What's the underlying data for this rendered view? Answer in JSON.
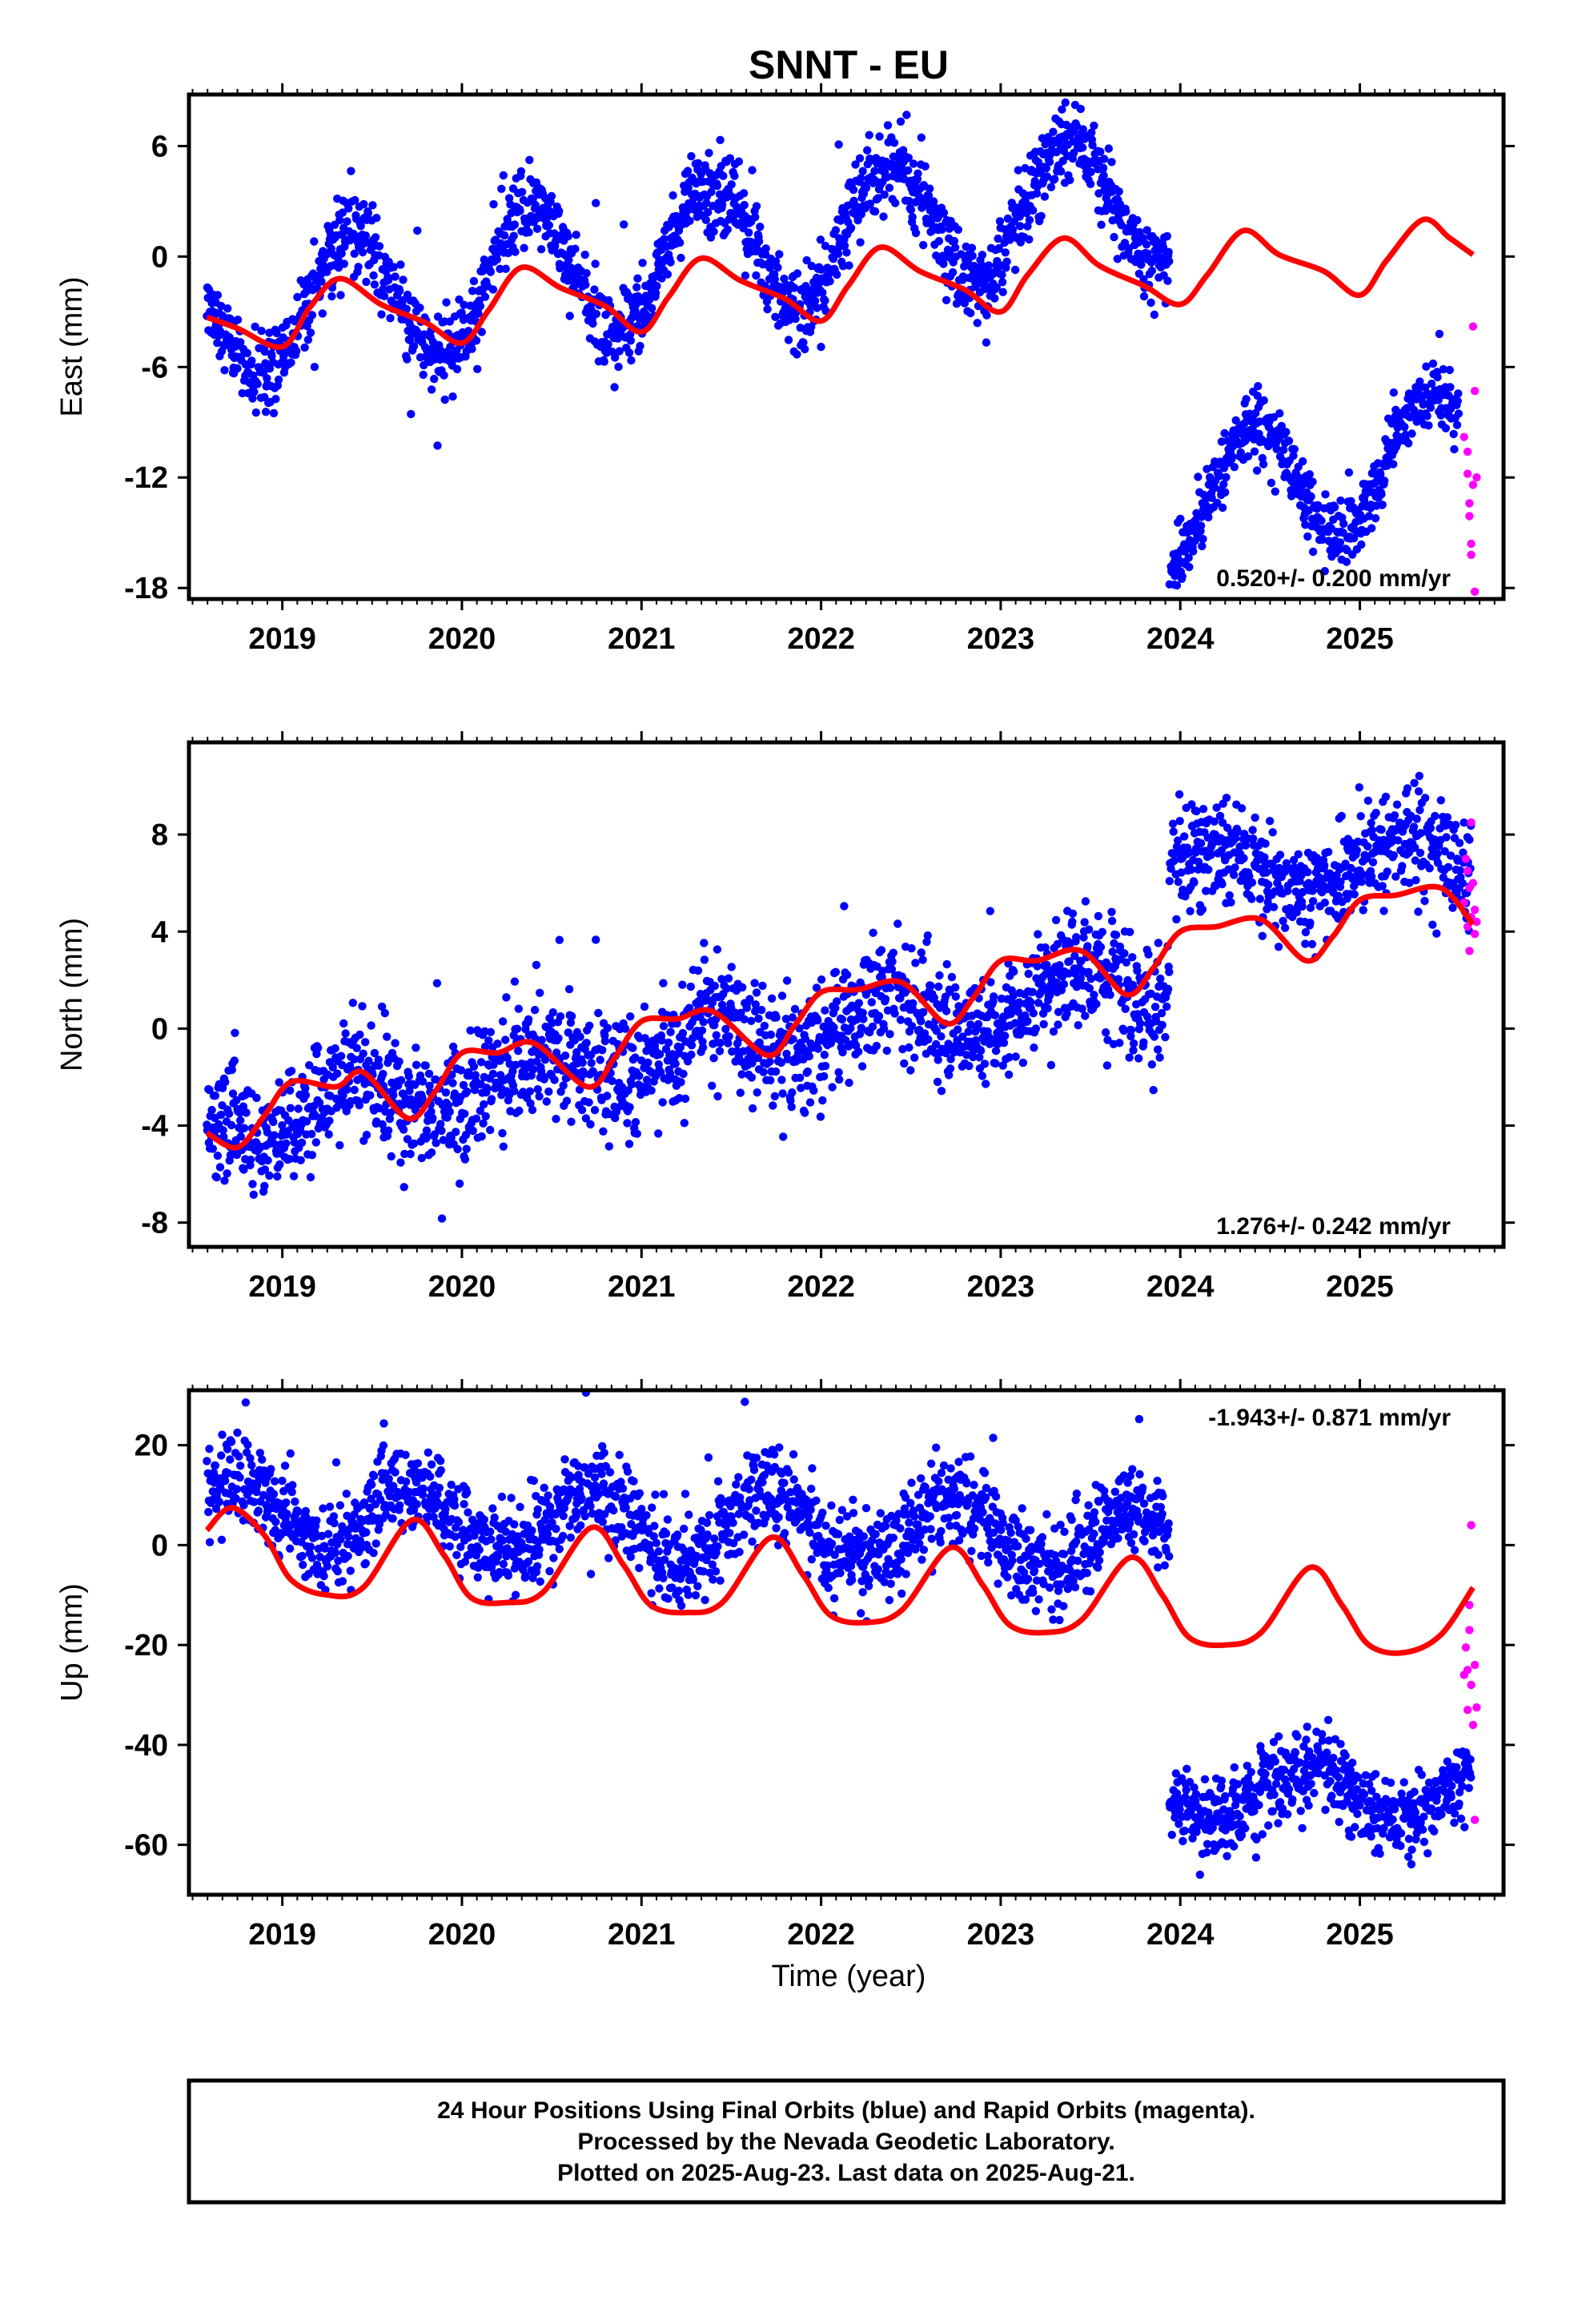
{
  "title": "SNNT - EU",
  "xlabel": "Time (year)",
  "x_tick_labels": [
    "2019",
    "2020",
    "2021",
    "2022",
    "2023",
    "2024",
    "2025"
  ],
  "footer": {
    "line1": "24 Hour Positions Using Final Orbits (blue) and Rapid Orbits (magenta).",
    "line2": "Processed by the Nevada Geodetic Laboratory.",
    "line3": "Plotted on 2025-Aug-23. Last data on 2025-Aug-21."
  },
  "colors": {
    "final_orbits": "#0000ff",
    "rapid_orbits": "#ff00ff",
    "model_fit": "#ff0000",
    "frame": "#000000"
  },
  "chart_data": [
    {
      "type": "scatter",
      "name": "east",
      "ylabel": "East (mm)",
      "xlim": [
        2018.48,
        2025.8
      ],
      "ylim": [
        -18.6,
        8.8
      ],
      "y_ticks": [
        6,
        0,
        -6,
        -12,
        -18
      ],
      "y_tick_labels": [
        "6",
        "0",
        "-6",
        "-12",
        "-18"
      ],
      "rate_label": "0.520+/- 0.200 mm/yr",
      "series": [
        {
          "role": "final",
          "segments": [
            {
              "t0": 2018.58,
              "t1": 2023.94,
              "trend_start": -3.2,
              "trend_end": 3.3,
              "ann_amp": 3.6,
              "ann_phase_peak": 0.38,
              "scatter": 1.1,
              "offset": 0
            },
            {
              "t0": 2023.94,
              "t1": 2025.55,
              "trend_start": -13.5,
              "trend_end": -10.5,
              "ann_amp": 3.4,
              "ann_phase_peak": 0.4,
              "scatter": 0.9,
              "offset": 0
            }
          ]
        },
        {
          "role": "rapid",
          "points": [
            [
              2025.58,
              -9.8
            ],
            [
              2025.6,
              -10.6
            ],
            [
              2025.6,
              -11.8
            ],
            [
              2025.61,
              -13.4
            ],
            [
              2025.61,
              -14.1
            ],
            [
              2025.62,
              -15.6
            ],
            [
              2025.62,
              -16.2
            ],
            [
              2025.63,
              -12.4
            ],
            [
              2025.63,
              -3.8
            ],
            [
              2025.64,
              -7.3
            ],
            [
              2025.64,
              -18.2
            ],
            [
              2025.65,
              -12.0
            ]
          ]
        }
      ],
      "model": [
        [
          2018.58,
          -3.3
        ],
        [
          2018.75,
          -3.9
        ],
        [
          2019.0,
          -4.9
        ],
        [
          2019.15,
          -2.8
        ],
        [
          2019.32,
          -1.2
        ],
        [
          2019.55,
          -2.6
        ],
        [
          2019.8,
          -3.6
        ],
        [
          2020.0,
          -4.7
        ],
        [
          2020.15,
          -2.9
        ],
        [
          2020.33,
          -0.6
        ],
        [
          2020.55,
          -1.7
        ],
        [
          2020.8,
          -2.7
        ],
        [
          2021.0,
          -4.1
        ],
        [
          2021.15,
          -2.2
        ],
        [
          2021.33,
          -0.1
        ],
        [
          2021.55,
          -1.3
        ],
        [
          2021.8,
          -2.3
        ],
        [
          2022.0,
          -3.5
        ],
        [
          2022.15,
          -1.6
        ],
        [
          2022.33,
          0.5
        ],
        [
          2022.55,
          -0.8
        ],
        [
          2022.8,
          -1.8
        ],
        [
          2023.0,
          -3.0
        ],
        [
          2023.15,
          -1.0
        ],
        [
          2023.35,
          1.0
        ],
        [
          2023.55,
          -0.5
        ],
        [
          2023.8,
          -1.6
        ],
        [
          2024.0,
          -2.6
        ],
        [
          2024.15,
          -1.0
        ],
        [
          2024.35,
          1.4
        ],
        [
          2024.55,
          0.1
        ],
        [
          2024.8,
          -0.8
        ],
        [
          2025.0,
          -2.1
        ],
        [
          2025.15,
          -0.2
        ],
        [
          2025.35,
          2.0
        ],
        [
          2025.5,
          1.0
        ],
        [
          2025.63,
          0.1
        ]
      ]
    },
    {
      "type": "scatter",
      "name": "north",
      "ylabel": "North (mm)",
      "xlim": [
        2018.48,
        2025.8
      ],
      "ylim": [
        -9.0,
        11.8
      ],
      "y_ticks": [
        8,
        4,
        0,
        -4,
        -8
      ],
      "y_tick_labels": [
        "8",
        "4",
        "0",
        "-4",
        "-8"
      ],
      "rate_label": "1.276+/- 0.242 mm/yr",
      "series": [
        {
          "role": "final",
          "segments": [
            {
              "t0": 2018.58,
              "t1": 2023.94,
              "trend_start": -3.8,
              "trend_end": 2.0,
              "ann_amp": 1.0,
              "ann_phase_peak": 0.4,
              "scatter": 1.2,
              "offset": 0
            },
            {
              "t0": 2023.94,
              "t1": 2025.62,
              "trend_start": 6.2,
              "trend_end": 7.2,
              "ann_amp": 1.0,
              "ann_phase_peak": 0.2,
              "scatter": 1.1,
              "offset": 0
            }
          ]
        },
        {
          "role": "rapid",
          "points": [
            [
              2025.58,
              5.2
            ],
            [
              2025.59,
              7.0
            ],
            [
              2025.6,
              6.5
            ],
            [
              2025.6,
              4.2
            ],
            [
              2025.61,
              3.2
            ],
            [
              2025.61,
              5.8
            ],
            [
              2025.62,
              4.6
            ],
            [
              2025.62,
              8.5
            ],
            [
              2025.63,
              6.0
            ],
            [
              2025.64,
              4.9
            ],
            [
              2025.64,
              3.9
            ],
            [
              2025.65,
              4.4
            ]
          ]
        }
      ],
      "model": [
        [
          2018.58,
          -4.3
        ],
        [
          2018.75,
          -4.9
        ],
        [
          2018.9,
          -3.6
        ],
        [
          2019.05,
          -2.2
        ],
        [
          2019.3,
          -2.4
        ],
        [
          2019.45,
          -1.8
        ],
        [
          2019.7,
          -3.7
        ],
        [
          2019.85,
          -2.6
        ],
        [
          2020.0,
          -1.0
        ],
        [
          2020.2,
          -1.0
        ],
        [
          2020.4,
          -0.6
        ],
        [
          2020.7,
          -2.4
        ],
        [
          2020.85,
          -1.2
        ],
        [
          2021.0,
          0.3
        ],
        [
          2021.2,
          0.4
        ],
        [
          2021.4,
          0.7
        ],
        [
          2021.7,
          -1.1
        ],
        [
          2021.85,
          0.1
        ],
        [
          2022.0,
          1.5
        ],
        [
          2022.2,
          1.6
        ],
        [
          2022.45,
          1.9
        ],
        [
          2022.7,
          0.2
        ],
        [
          2022.85,
          1.3
        ],
        [
          2023.0,
          2.8
        ],
        [
          2023.2,
          2.8
        ],
        [
          2023.45,
          3.2
        ],
        [
          2023.7,
          1.4
        ],
        [
          2023.85,
          2.5
        ],
        [
          2024.0,
          4.0
        ],
        [
          2024.2,
          4.2
        ],
        [
          2024.45,
          4.5
        ],
        [
          2024.7,
          2.8
        ],
        [
          2024.85,
          3.8
        ],
        [
          2025.0,
          5.3
        ],
        [
          2025.2,
          5.5
        ],
        [
          2025.45,
          5.8
        ],
        [
          2025.63,
          4.3
        ]
      ]
    },
    {
      "type": "scatter",
      "name": "up",
      "ylabel": "Up (mm)",
      "xlim": [
        2018.48,
        2025.8
      ],
      "ylim": [
        -70.0,
        31.0
      ],
      "y_ticks": [
        20,
        0,
        -20,
        -40,
        -60
      ],
      "y_tick_labels": [
        "20",
        "0",
        "-20",
        "-40",
        "-60"
      ],
      "rate_label": "-1.943+/- 0.871 mm/yr",
      "series": [
        {
          "role": "final",
          "segments": [
            {
              "t0": 2018.58,
              "t1": 2023.94,
              "trend_start": 7.0,
              "trend_end": 0.5,
              "ann_amp": 6.5,
              "ann_phase_peak": 0.72,
              "scatter": 4.5,
              "offset": 0
            },
            {
              "t0": 2023.94,
              "t1": 2025.62,
              "trend_start": -50.0,
              "trend_end": -50.0,
              "ann_amp": 5.0,
              "ann_phase_peak": 0.7,
              "scatter": 4.0,
              "offset": 0
            }
          ]
        },
        {
          "role": "rapid",
          "points": [
            [
              2025.58,
              -26.0
            ],
            [
              2025.59,
              -20.5
            ],
            [
              2025.6,
              -25.0
            ],
            [
              2025.6,
              -33.0
            ],
            [
              2025.61,
              -12.0
            ],
            [
              2025.61,
              -17.0
            ],
            [
              2025.62,
              -28.0
            ],
            [
              2025.62,
              4.0
            ],
            [
              2025.63,
              -36.0
            ],
            [
              2025.64,
              -55.0
            ],
            [
              2025.64,
              -24.0
            ],
            [
              2025.65,
              -32.5
            ]
          ]
        }
      ],
      "model": [
        [
          2018.58,
          3.0
        ],
        [
          2018.72,
          7.5
        ],
        [
          2018.9,
          2.0
        ],
        [
          2019.05,
          -7.0
        ],
        [
          2019.25,
          -10.0
        ],
        [
          2019.45,
          -8.5
        ],
        [
          2019.72,
          5.0
        ],
        [
          2019.9,
          -2.0
        ],
        [
          2020.05,
          -10.5
        ],
        [
          2020.25,
          -11.5
        ],
        [
          2020.45,
          -9.5
        ],
        [
          2020.72,
          3.5
        ],
        [
          2020.9,
          -4.0
        ],
        [
          2021.05,
          -12.0
        ],
        [
          2021.25,
          -13.5
        ],
        [
          2021.45,
          -11.5
        ],
        [
          2021.72,
          1.5
        ],
        [
          2021.9,
          -6.0
        ],
        [
          2022.05,
          -14.0
        ],
        [
          2022.25,
          -15.5
        ],
        [
          2022.45,
          -13.0
        ],
        [
          2022.72,
          -0.5
        ],
        [
          2022.9,
          -8.0
        ],
        [
          2023.05,
          -16.0
        ],
        [
          2023.25,
          -17.5
        ],
        [
          2023.45,
          -15.0
        ],
        [
          2023.72,
          -2.5
        ],
        [
          2023.9,
          -10.0
        ],
        [
          2024.05,
          -18.5
        ],
        [
          2024.25,
          -20.0
        ],
        [
          2024.45,
          -17.5
        ],
        [
          2024.72,
          -4.5
        ],
        [
          2024.9,
          -12.0
        ],
        [
          2025.05,
          -20.0
        ],
        [
          2025.25,
          -21.5
        ],
        [
          2025.45,
          -18.0
        ],
        [
          2025.63,
          -8.5
        ]
      ]
    }
  ]
}
